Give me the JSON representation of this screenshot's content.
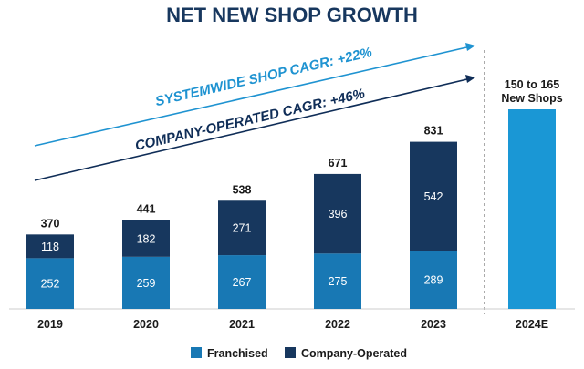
{
  "chart_data": {
    "type": "bar",
    "stacked": true,
    "title": "NET NEW SHOP GROWTH",
    "categories": [
      "2019",
      "2020",
      "2021",
      "2022",
      "2023"
    ],
    "series": [
      {
        "name": "Franchised",
        "color": "#1878b4",
        "values": [
          252,
          259,
          267,
          275,
          289
        ]
      },
      {
        "name": "Company-Operated",
        "color": "#17375e",
        "values": [
          118,
          182,
          271,
          396,
          542
        ]
      }
    ],
    "totals": [
      "370",
      "441",
      "538",
      "671",
      "831"
    ],
    "projection": {
      "category": "2024E",
      "label_line1": "150 to 165",
      "label_line2": "New Shops",
      "color": "#1a97d5"
    },
    "annotations": {
      "systemwide": "SYSTEMWIDE SHOP CAGR: +22%",
      "company_operated": "COMPANY-OPERATED CAGR: +46%"
    },
    "legend": [
      "Franchised",
      "Company-Operated"
    ],
    "ylim": [
      0,
      900
    ]
  }
}
